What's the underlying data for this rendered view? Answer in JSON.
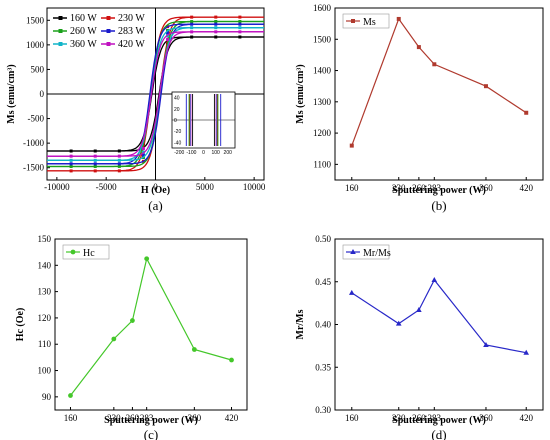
{
  "chart_data": [
    {
      "type": "line",
      "panel_label": "(a)",
      "xlabel": "H (Oe)",
      "ylabel": "Ms (emu/cm³)",
      "xlim": [
        -11000,
        11000
      ],
      "ylim": [
        -1750,
        1750
      ],
      "xticks": [
        -10000,
        -5000,
        0,
        5000,
        10000
      ],
      "yticks": [
        -1500,
        -1000,
        -500,
        0,
        500,
        1000,
        1500
      ],
      "legend": "top-left",
      "series": [
        {
          "name": "160 W",
          "ms": 1160,
          "hc": 90,
          "color": "#000000"
        },
        {
          "name": "230 W",
          "ms": 1565,
          "hc": 112,
          "color": "#d01010"
        },
        {
          "name": "260 W",
          "ms": 1475,
          "hc": 119,
          "color": "#1aa01a"
        },
        {
          "name": "283 W",
          "ms": 1420,
          "hc": 142,
          "color": "#1a1acc"
        },
        {
          "name": "360 W",
          "ms": 1350,
          "hc": 108,
          "color": "#11b4c8"
        },
        {
          "name": "420 W",
          "ms": 1265,
          "hc": 104,
          "color": "#c010c0"
        }
      ],
      "inset": {
        "xticks": [
          -200,
          -100,
          0,
          100,
          200
        ],
        "xtick_labels": [
          "-200",
          "-100",
          "0",
          "100",
          "200"
        ],
        "yticks": [
          40,
          20,
          0,
          -20,
          -40
        ],
        "xlim": [
          -260,
          260
        ],
        "ylim": [
          -50,
          50
        ]
      }
    },
    {
      "type": "line",
      "panel_label": "(b)",
      "xlabel": "Sputtering power (W)",
      "ylabel": "Ms (emu/cm³)",
      "legend_label": "Ms",
      "color": "#b03a2e",
      "marker": "square",
      "x": [
        160,
        230,
        260,
        283,
        360,
        420
      ],
      "y": [
        1160,
        1565,
        1475,
        1420,
        1350,
        1265
      ],
      "xlim": [
        135,
        445
      ],
      "ylim": [
        1050,
        1600
      ],
      "yticks": [
        1100,
        1200,
        1300,
        1400,
        1500,
        1600
      ],
      "legend": "top-left"
    },
    {
      "type": "line",
      "panel_label": "(c)",
      "xlabel": "Sputtering power (W)",
      "ylabel": "Hc (Oe)",
      "legend_label": "Hc",
      "color": "#44c72a",
      "marker": "circle",
      "x": [
        160,
        230,
        260,
        283,
        360,
        420
      ],
      "y": [
        90.5,
        112,
        119,
        142.5,
        108,
        104
      ],
      "xlim": [
        135,
        445
      ],
      "ylim": [
        85,
        150
      ],
      "yticks": [
        90,
        100,
        110,
        120,
        130,
        140,
        150
      ],
      "legend": "top-left"
    },
    {
      "type": "line",
      "panel_label": "(d)",
      "xlabel": "Sputtering power (W)",
      "ylabel": "Mr/Ms",
      "legend_label": "Mr/Ms",
      "color": "#2828c8",
      "marker": "triangle",
      "x": [
        160,
        230,
        260,
        283,
        360,
        420
      ],
      "y": [
        0.437,
        0.401,
        0.417,
        0.452,
        0.376,
        0.367
      ],
      "xlim": [
        135,
        445
      ],
      "ylim": [
        0.3,
        0.5
      ],
      "yticks": [
        0.3,
        0.35,
        0.4,
        0.45,
        0.5
      ],
      "ytick_labels": [
        "0.30",
        "0.35",
        "0.40",
        "0.45",
        "0.50"
      ],
      "legend": "top-left"
    }
  ]
}
